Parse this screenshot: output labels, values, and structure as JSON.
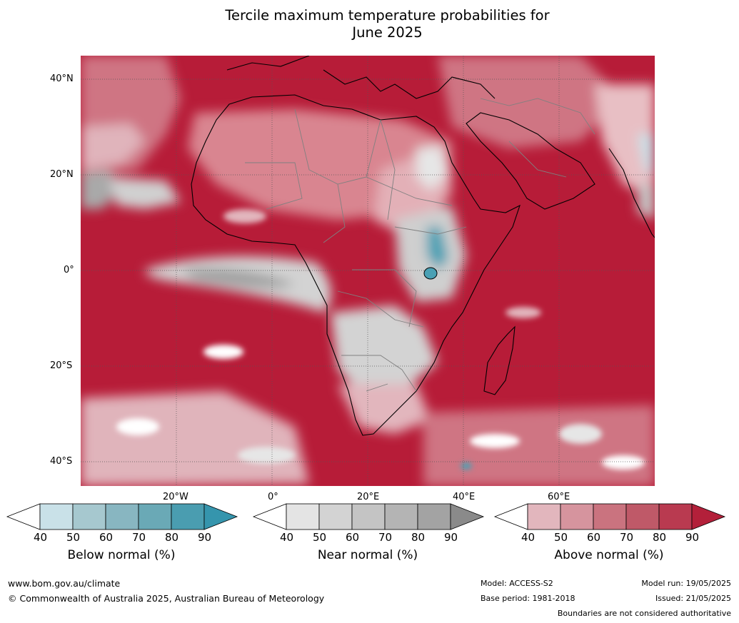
{
  "title": {
    "line1": "Tercile maximum temperature probabilities for",
    "line2": "June 2025"
  },
  "map": {
    "lat_labels": [
      "40°N",
      "20°N",
      "0°",
      "20°S",
      "40°S"
    ],
    "lon_labels": [
      "20°W",
      "0°",
      "20°E",
      "40°E",
      "60°E"
    ],
    "colors": {
      "ocean_dominant": "#b71c38",
      "land_above": "#d9858f",
      "near_normal": "#c8c8c8",
      "below_normal": "#4aa0b4",
      "coastline": "#000000",
      "borders": "#808080"
    }
  },
  "colorbars": [
    {
      "label": "Below normal (%)",
      "ticks": [
        "40",
        "50",
        "60",
        "70",
        "80",
        "90"
      ],
      "colors": [
        "#ffffff",
        "#c9e1e8",
        "#a6c8cf",
        "#88b6c1",
        "#6aa9b6",
        "#4a9db0",
        "#3595ad"
      ]
    },
    {
      "label": "Near normal (%)",
      "ticks": [
        "40",
        "50",
        "60",
        "70",
        "80",
        "90"
      ],
      "colors": [
        "#ffffff",
        "#e4e4e4",
        "#d3d3d3",
        "#c4c4c4",
        "#b4b4b4",
        "#a3a3a3",
        "#8a8a8a"
      ]
    },
    {
      "label": "Above normal (%)",
      "ticks": [
        "40",
        "50",
        "60",
        "70",
        "80",
        "90"
      ],
      "colors": [
        "#ffffff",
        "#e2b6bd",
        "#d6949e",
        "#ca737f",
        "#bf5968",
        "#b93a50",
        "#b3203a"
      ]
    }
  ],
  "footer": {
    "website": "www.bom.gov.au/climate",
    "copyright": "© Commonwealth of Australia 2025, Australian Bureau of Meteorology",
    "model": "Model: ACCESS-S2",
    "base_period": "Base period: 1981-2018",
    "model_run": "Model run: 19/05/2025",
    "issued": "Issued: 21/05/2025",
    "disclaimer": "Boundaries are not considered authoritative"
  }
}
